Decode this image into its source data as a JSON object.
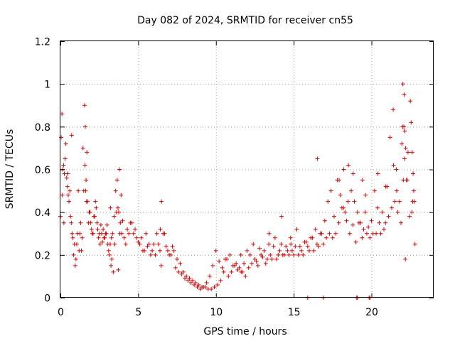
{
  "chart_data": {
    "type": "scatter",
    "title": "Day 082 of 2024, SRMTID for receiver cn55",
    "xlabel": "GPS time / hours",
    "ylabel": "SRMTID / TECUs",
    "xlim": [
      0,
      24
    ],
    "ylim": [
      0,
      1.2
    ],
    "xticks": [
      0,
      5,
      10,
      15,
      20
    ],
    "yticks": [
      0,
      0.2,
      0.4,
      0.6,
      0.8,
      1,
      1.2
    ],
    "xtick_labels": [
      "0",
      "5",
      "10",
      "15",
      "20"
    ],
    "ytick_labels": [
      "0",
      "0.2",
      "0.4",
      "0.6",
      "0.8",
      "1",
      "1.2"
    ],
    "grid": true,
    "marker": "+",
    "marker_color": "#e00000",
    "series": [
      {
        "name": "cn55",
        "x": [
          0.0,
          0.1,
          0.15,
          0.25,
          0.35,
          0.45,
          0.55,
          0.65,
          0.75,
          0.85,
          0.95,
          1.05,
          1.15,
          1.25,
          1.35,
          1.45,
          1.55,
          1.65,
          1.75,
          1.85,
          1.95,
          2.05,
          2.15,
          2.25,
          2.35,
          2.45,
          2.55,
          2.65,
          2.75,
          2.85,
          2.95,
          3.05,
          3.15,
          3.25,
          3.35,
          3.45,
          3.55,
          3.65,
          3.75,
          3.85,
          3.95,
          4.1,
          4.3,
          4.5,
          4.7,
          4.9,
          5.1,
          5.3,
          5.5,
          5.7,
          5.9,
          6.1,
          6.3,
          6.5,
          6.7,
          6.9,
          7.1,
          7.3,
          7.5,
          7.7,
          7.9,
          8.1,
          8.3,
          8.5,
          8.7,
          8.9,
          9.1,
          9.3,
          9.5,
          9.7,
          9.9,
          10.1,
          10.3,
          10.5,
          10.7,
          10.9,
          11.1,
          11.3,
          11.5,
          11.7,
          11.9,
          12.1,
          12.3,
          12.5,
          12.7,
          12.9,
          13.1,
          13.3,
          13.5,
          13.7,
          13.9,
          14.1,
          14.3,
          14.5,
          14.7,
          14.9,
          15.1,
          15.3,
          15.5,
          15.7,
          15.9,
          16.1,
          16.3,
          16.5,
          16.7,
          16.9,
          17.1,
          17.3,
          17.5,
          17.7,
          17.9,
          18.1,
          18.3,
          18.5,
          18.7,
          18.9,
          19.1,
          19.3,
          19.5,
          19.7,
          19.9,
          20.1,
          20.3,
          20.5,
          20.7,
          20.9,
          21.1,
          21.3,
          21.5,
          21.7,
          21.9,
          22.0,
          22.1,
          22.2,
          22.3,
          22.45,
          22.6,
          22.75,
          0.05,
          0.2,
          0.3,
          0.4,
          0.5,
          0.6,
          0.7,
          0.8,
          0.9,
          1.0,
          1.1,
          1.2,
          1.3,
          1.4,
          1.5,
          1.6,
          1.7,
          1.8,
          1.9,
          2.0,
          2.1,
          2.2,
          2.3,
          2.4,
          2.5,
          2.6,
          2.7,
          2.8,
          2.9,
          3.0,
          3.1,
          3.2,
          3.3,
          3.4,
          3.5,
          3.6,
          3.7,
          3.8,
          3.9,
          4.0,
          4.2,
          4.4,
          4.6,
          4.8,
          5.0,
          5.2,
          5.4,
          5.6,
          5.8,
          6.0,
          6.2,
          6.4,
          6.6,
          6.8,
          7.0,
          7.2,
          7.4,
          7.6,
          7.8,
          8.0,
          8.2,
          8.4,
          8.6,
          8.8,
          9.0,
          9.2,
          9.4,
          9.6,
          9.8,
          10.0,
          10.2,
          10.4,
          10.6,
          10.8,
          11.0,
          11.2,
          11.4,
          11.6,
          11.8,
          12.0,
          12.2,
          12.4,
          12.6,
          12.8,
          13.0,
          13.2,
          13.4,
          13.6,
          13.8,
          14.0,
          14.2,
          14.4,
          14.6,
          14.8,
          15.0,
          15.2,
          15.4,
          15.6,
          15.8,
          16.0,
          16.2,
          16.4,
          16.6,
          16.8,
          17.0,
          17.2,
          17.4,
          17.6,
          17.8,
          18.0,
          18.2,
          18.4,
          18.6,
          18.8,
          19.0,
          19.2,
          19.4,
          19.6,
          19.8,
          20.0,
          20.2,
          20.4,
          20.6,
          20.8,
          21.0,
          21.2,
          21.4,
          21.6,
          21.8,
          22.05,
          22.15,
          22.25,
          22.35,
          22.5,
          22.65,
          22.8,
          0.12,
          0.22,
          0.48,
          0.72,
          1.58,
          1.62,
          1.68,
          3.22,
          3.28,
          3.72,
          3.82,
          6.42,
          6.48,
          11.62,
          13.42,
          14.22,
          14.82,
          16.52,
          17.92,
          18.22,
          18.52,
          18.82,
          19.42,
          19.62,
          20.42,
          20.92,
          21.42,
          21.62,
          21.95,
          22.02,
          22.08,
          22.12,
          22.18,
          22.55,
          22.62,
          22.68,
          22.72,
          15.9,
          16.9,
          19.05,
          19.1,
          19.85,
          19.9
        ],
        "y": [
          0.38,
          0.86,
          0.6,
          0.58,
          0.72,
          0.52,
          0.45,
          0.38,
          0.3,
          0.2,
          0.15,
          0.25,
          0.5,
          0.3,
          0.22,
          0.7,
          0.9,
          0.55,
          0.45,
          0.4,
          0.35,
          0.3,
          0.38,
          0.45,
          0.35,
          0.28,
          0.25,
          0.3,
          0.32,
          0.28,
          0.3,
          0.25,
          0.2,
          0.15,
          0.3,
          0.38,
          0.5,
          0.55,
          0.4,
          0.35,
          0.3,
          0.28,
          0.32,
          0.35,
          0.3,
          0.28,
          0.25,
          0.22,
          0.3,
          0.25,
          0.22,
          0.2,
          0.25,
          0.45,
          0.3,
          0.22,
          0.2,
          0.22,
          0.18,
          0.16,
          0.12,
          0.1,
          0.09,
          0.08,
          0.07,
          0.06,
          0.05,
          0.05,
          0.04,
          0.04,
          0.05,
          0.06,
          0.08,
          0.12,
          0.18,
          0.2,
          0.15,
          0.16,
          0.14,
          0.12,
          0.1,
          0.14,
          0.16,
          0.18,
          0.15,
          0.2,
          0.22,
          0.18,
          0.2,
          0.24,
          0.18,
          0.22,
          0.2,
          0.24,
          0.2,
          0.22,
          0.24,
          0.2,
          0.22,
          0.26,
          0.24,
          0.28,
          0.22,
          0.25,
          0.3,
          0.25,
          0.28,
          0.3,
          0.28,
          0.3,
          0.35,
          0.42,
          0.4,
          0.45,
          0.5,
          0.45,
          0.4,
          0.35,
          0.32,
          0.3,
          0.28,
          0.3,
          0.3,
          0.35,
          0.4,
          0.35,
          0.38,
          0.42,
          0.45,
          0.4,
          0.35,
          0.8,
          0.95,
          0.7,
          0.55,
          0.38,
          0.4,
          0.45,
          0.75,
          0.62,
          0.65,
          0.56,
          0.48,
          0.5,
          0.35,
          0.28,
          0.25,
          0.18,
          0.3,
          0.22,
          0.35,
          0.28,
          0.5,
          0.8,
          0.68,
          0.35,
          0.4,
          0.32,
          0.3,
          0.38,
          0.42,
          0.32,
          0.3,
          0.34,
          0.26,
          0.28,
          0.3,
          0.34,
          0.22,
          0.25,
          0.18,
          0.12,
          0.25,
          0.4,
          0.42,
          0.6,
          0.48,
          0.36,
          0.25,
          0.3,
          0.35,
          0.32,
          0.26,
          0.28,
          0.22,
          0.24,
          0.2,
          0.25,
          0.3,
          0.22,
          0.3,
          0.24,
          0.2,
          0.24,
          0.14,
          0.12,
          0.11,
          0.09,
          0.08,
          0.07,
          0.06,
          0.05,
          0.04,
          0.05,
          0.07,
          0.1,
          0.15,
          0.22,
          0.17,
          0.14,
          0.18,
          0.1,
          0.12,
          0.15,
          0.13,
          0.2,
          0.16,
          0.22,
          0.2,
          0.25,
          0.17,
          0.23,
          0.19,
          0.16,
          0.25,
          0.18,
          0.28,
          0.2,
          0.25,
          0.2,
          0.22,
          0.28,
          0.2,
          0.32,
          0.24,
          0.2,
          0.26,
          0.22,
          0.28,
          0.32,
          0.24,
          0.3,
          0.36,
          0.45,
          0.5,
          0.38,
          0.55,
          0.48,
          0.42,
          0.36,
          0.3,
          0.34,
          0.26,
          0.35,
          0.28,
          0.4,
          0.33,
          0.36,
          0.5,
          0.42,
          0.3,
          0.32,
          0.52,
          0.75,
          0.88,
          0.6,
          0.45,
          0.55,
          0.78,
          0.55,
          0.68,
          0.92,
          0.45,
          0.25,
          0.48,
          0.35,
          0.58,
          0.76,
          0.62,
          0.5,
          0.45,
          0.42,
          0.28,
          0.13,
          0.3,
          0.32,
          0.15,
          0.12,
          0.3,
          0.38,
          0.25,
          0.65,
          0.55,
          0.6,
          0.62,
          0.58,
          0.55,
          0.48,
          0.58,
          0.52,
          0.62,
          0.5,
          0.72,
          1.0,
          0.8,
          0.65,
          0.18,
          0.82,
          0.68,
          0.58,
          0.5,
          0.0,
          0.0,
          0.0,
          0.0,
          0.0,
          0.0
        ]
      }
    ]
  }
}
